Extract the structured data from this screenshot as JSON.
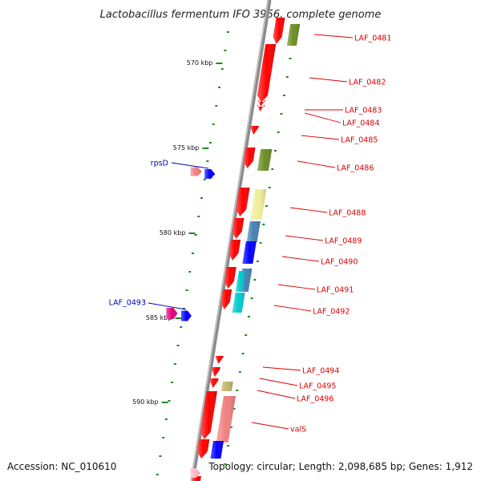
{
  "title": "Lactobacillus fermentum IFO 3956, complete genome",
  "footer": {
    "accession": "Accession: NC_010610",
    "topology": "Topology: circular; Length: 2,098,685 bp; Genes: 1,912"
  },
  "colors": {
    "forward_label": "#dd0000",
    "reverse_label": "#0000bb",
    "tick": "#228822",
    "backbone": "#888888"
  },
  "kbp_ticks": [
    {
      "label": "570 kbp",
      "kbp": 570
    },
    {
      "label": "575 kbp",
      "kbp": 575
    },
    {
      "label": "580 kbp",
      "kbp": 580
    },
    {
      "label": "585 kbp",
      "kbp": 585
    },
    {
      "label": "590 kbp",
      "kbp": 590
    }
  ],
  "gene_labels": [
    {
      "text": "LAF_0481",
      "strand": "forward"
    },
    {
      "text": "LAF_0482",
      "strand": "forward"
    },
    {
      "text": "LAF_0483",
      "strand": "forward"
    },
    {
      "text": "LAF_0484",
      "strand": "forward"
    },
    {
      "text": "LAF_0485",
      "strand": "forward"
    },
    {
      "text": "LAF_0486",
      "strand": "forward"
    },
    {
      "text": "rpsD",
      "strand": "reverse"
    },
    {
      "text": "LAF_0488",
      "strand": "forward"
    },
    {
      "text": "LAF_0489",
      "strand": "forward"
    },
    {
      "text": "LAF_0490",
      "strand": "forward"
    },
    {
      "text": "LAF_0491",
      "strand": "forward"
    },
    {
      "text": "LAF_0492",
      "strand": "forward"
    },
    {
      "text": "LAF_0493",
      "strand": "reverse"
    },
    {
      "text": "LAF_0494",
      "strand": "forward"
    },
    {
      "text": "LAF_0495",
      "strand": "forward"
    },
    {
      "text": "LAF_0496",
      "strand": "forward"
    },
    {
      "text": "valS",
      "strand": "forward"
    }
  ]
}
